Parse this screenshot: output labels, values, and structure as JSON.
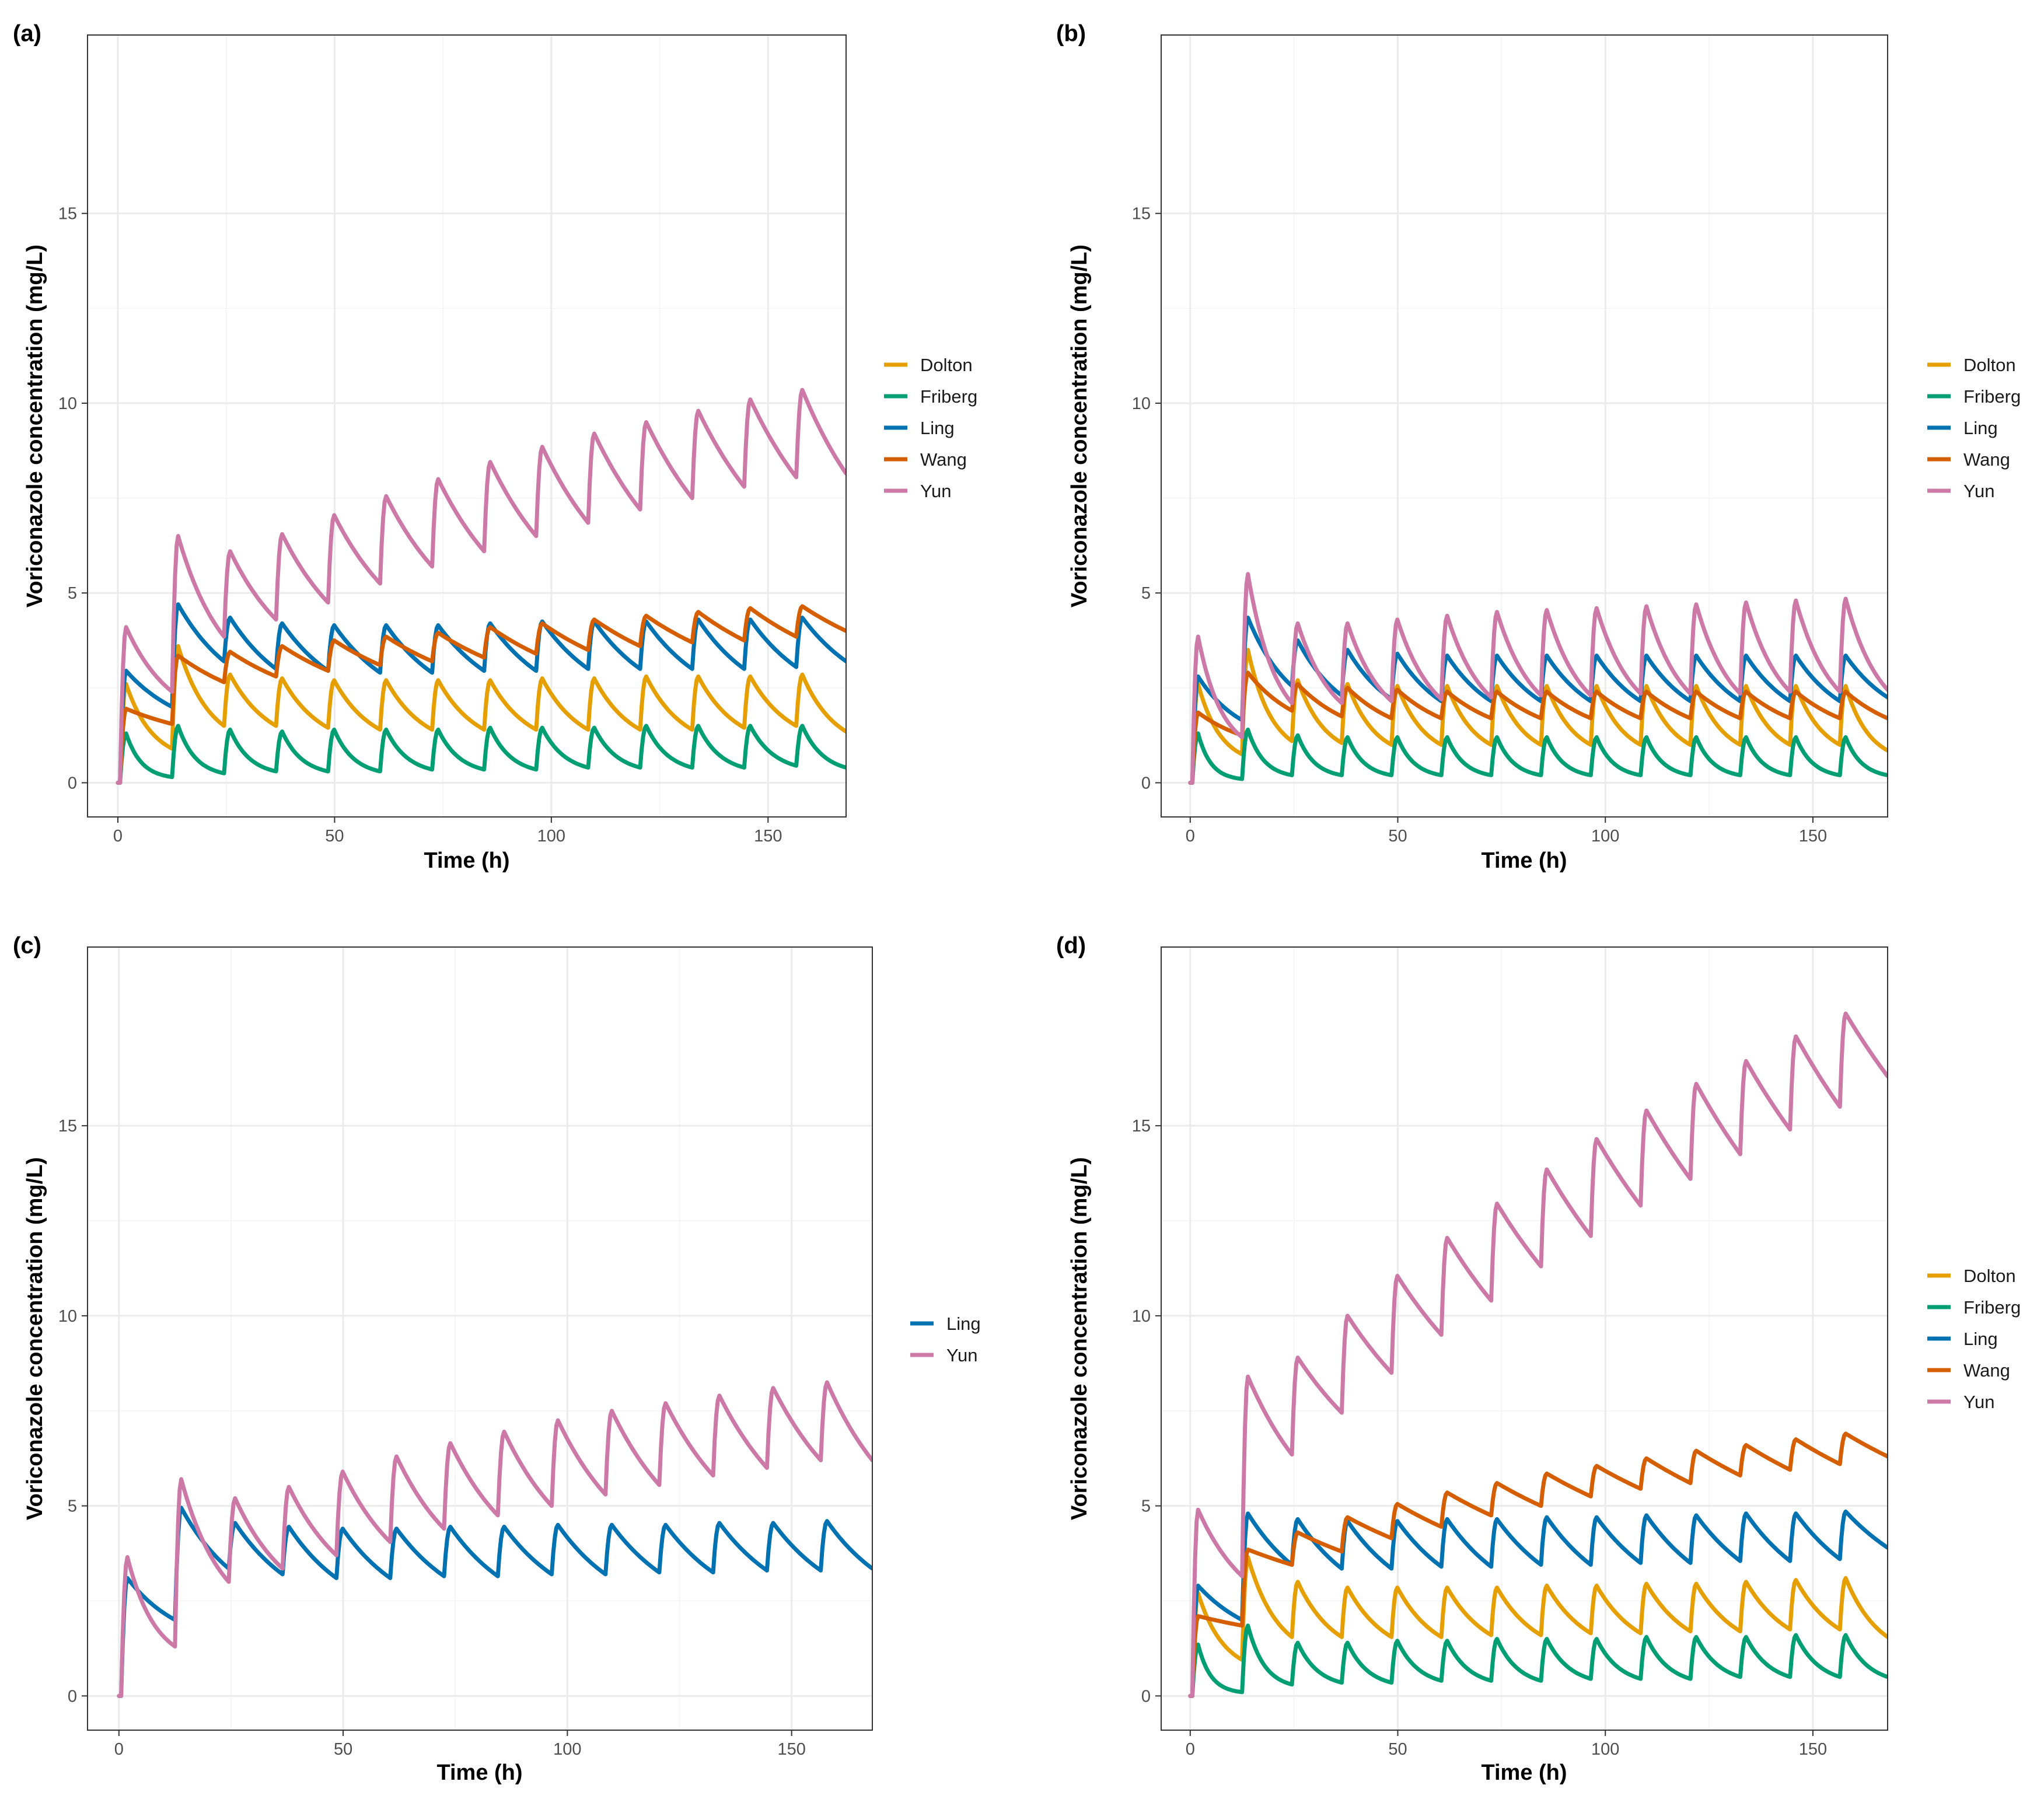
{
  "figure": {
    "x_label": "Time (h)",
    "y_label": "Voriconazole concentration (mg/L)"
  },
  "colors": {
    "Dolton": "#E69F00",
    "Friberg": "#009E73",
    "Ling": "#0072B2",
    "Wang": "#D55E00",
    "Yun": "#CC79A7"
  },
  "chart_data": [
    {
      "panel": "(a)",
      "type": "line",
      "xlabel": "Time (h)",
      "ylabel": "Voriconazole concentration (mg/L)",
      "xlim": [
        -7,
        168
      ],
      "ylim": [
        -0.9,
        19.7
      ],
      "xticks": [
        0,
        50,
        100,
        150
      ],
      "yticks": [
        0,
        5,
        10,
        15
      ],
      "legend": [
        "Dolton",
        "Friberg",
        "Ling",
        "Wang",
        "Yun"
      ],
      "series": [
        {
          "name": "Dolton",
          "peaks": [
            2.6,
            3.6,
            2.85,
            2.75,
            2.7,
            2.7,
            2.7,
            2.7,
            2.75,
            2.75,
            2.8,
            2.8,
            2.8,
            2.85
          ],
          "troughs": [
            0.0,
            0.9,
            1.5,
            1.5,
            1.45,
            1.4,
            1.4,
            1.4,
            1.4,
            1.4,
            1.4,
            1.4,
            1.45,
            1.5
          ],
          "end": 1.35
        },
        {
          "name": "Friberg",
          "peaks": [
            1.3,
            1.5,
            1.4,
            1.35,
            1.4,
            1.4,
            1.4,
            1.45,
            1.45,
            1.45,
            1.5,
            1.5,
            1.5,
            1.5
          ],
          "troughs": [
            0.0,
            0.15,
            0.25,
            0.3,
            0.3,
            0.3,
            0.35,
            0.35,
            0.35,
            0.4,
            0.4,
            0.4,
            0.4,
            0.45
          ],
          "end": 0.4
        },
        {
          "name": "Ling",
          "peaks": [
            2.95,
            4.7,
            4.35,
            4.2,
            4.15,
            4.15,
            4.15,
            4.2,
            4.25,
            4.25,
            4.25,
            4.3,
            4.3,
            4.35
          ],
          "troughs": [
            0.0,
            2.0,
            3.2,
            3.0,
            2.95,
            2.9,
            2.9,
            2.95,
            2.95,
            3.0,
            3.0,
            3.0,
            3.0,
            3.05
          ],
          "end": 3.2
        },
        {
          "name": "Wang",
          "peaks": [
            1.95,
            3.35,
            3.45,
            3.6,
            3.75,
            3.85,
            3.95,
            4.1,
            4.2,
            4.3,
            4.4,
            4.5,
            4.6,
            4.65
          ],
          "troughs": [
            0.0,
            1.55,
            2.65,
            2.8,
            2.95,
            3.1,
            3.2,
            3.3,
            3.4,
            3.5,
            3.6,
            3.7,
            3.75,
            3.85
          ],
          "end": 4.0
        },
        {
          "name": "Yun",
          "peaks": [
            4.1,
            6.5,
            6.1,
            6.55,
            7.05,
            7.55,
            8.0,
            8.45,
            8.85,
            9.2,
            9.5,
            9.8,
            10.1,
            10.35
          ],
          "troughs": [
            0.0,
            2.4,
            3.85,
            4.3,
            4.75,
            5.25,
            5.7,
            6.1,
            6.5,
            6.85,
            7.2,
            7.5,
            7.8,
            8.05
          ],
          "end": 8.15
        }
      ]
    },
    {
      "panel": "(b)",
      "type": "line",
      "xlabel": "Time (h)",
      "ylabel": "Voriconazole concentration (mg/L)",
      "xlim": [
        -7,
        168
      ],
      "ylim": [
        -0.9,
        19.7
      ],
      "xticks": [
        0,
        50,
        100,
        150
      ],
      "yticks": [
        0,
        5,
        10,
        15
      ],
      "legend": [
        "Dolton",
        "Friberg",
        "Ling",
        "Wang",
        "Yun"
      ],
      "series": [
        {
          "name": "Dolton",
          "peaks": [
            2.6,
            3.5,
            2.7,
            2.6,
            2.55,
            2.55,
            2.55,
            2.55,
            2.55,
            2.55,
            2.55,
            2.55,
            2.55,
            2.55
          ],
          "troughs": [
            0.0,
            0.75,
            1.1,
            1.05,
            1.0,
            1.0,
            1.0,
            1.0,
            1.0,
            1.0,
            1.0,
            1.0,
            1.0,
            1.0
          ],
          "end": 0.85
        },
        {
          "name": "Friberg",
          "peaks": [
            1.3,
            1.4,
            1.25,
            1.2,
            1.2,
            1.2,
            1.2,
            1.2,
            1.2,
            1.2,
            1.2,
            1.2,
            1.2,
            1.2
          ],
          "troughs": [
            0.0,
            0.1,
            0.2,
            0.2,
            0.2,
            0.2,
            0.2,
            0.2,
            0.2,
            0.2,
            0.2,
            0.2,
            0.2,
            0.2
          ],
          "end": 0.2
        },
        {
          "name": "Ling",
          "peaks": [
            2.8,
            4.35,
            3.75,
            3.5,
            3.4,
            3.35,
            3.35,
            3.35,
            3.35,
            3.35,
            3.35,
            3.35,
            3.35,
            3.35
          ],
          "troughs": [
            0.0,
            1.65,
            2.55,
            2.3,
            2.2,
            2.15,
            2.15,
            2.15,
            2.15,
            2.15,
            2.15,
            2.15,
            2.15,
            2.15
          ],
          "end": 2.25
        },
        {
          "name": "Wang",
          "peaks": [
            1.85,
            2.9,
            2.6,
            2.5,
            2.45,
            2.4,
            2.4,
            2.4,
            2.4,
            2.4,
            2.4,
            2.4,
            2.4,
            2.4
          ],
          "troughs": [
            0.0,
            1.25,
            1.9,
            1.75,
            1.7,
            1.7,
            1.7,
            1.7,
            1.7,
            1.7,
            1.7,
            1.7,
            1.7,
            1.7
          ],
          "end": 1.7
        },
        {
          "name": "Yun",
          "peaks": [
            3.85,
            5.5,
            4.2,
            4.2,
            4.3,
            4.4,
            4.5,
            4.55,
            4.6,
            4.65,
            4.7,
            4.75,
            4.8,
            4.85
          ],
          "troughs": [
            0.0,
            1.2,
            2.1,
            2.1,
            2.15,
            2.2,
            2.25,
            2.3,
            2.3,
            2.35,
            2.35,
            2.35,
            2.4,
            2.4
          ],
          "end": 2.45
        }
      ]
    },
    {
      "panel": "(c)",
      "type": "line",
      "xlabel": "Time (h)",
      "ylabel": "Voriconazole concentration (mg/L)",
      "xlim": [
        -7,
        168
      ],
      "ylim": [
        -0.9,
        19.7
      ],
      "xticks": [
        0,
        50,
        100,
        150
      ],
      "yticks": [
        0,
        5,
        10,
        15
      ],
      "legend": [
        "Ling",
        "Yun"
      ],
      "series": [
        {
          "name": "Ling",
          "peaks": [
            3.1,
            4.95,
            4.55,
            4.45,
            4.4,
            4.4,
            4.45,
            4.45,
            4.5,
            4.5,
            4.5,
            4.55,
            4.55,
            4.6
          ],
          "troughs": [
            0.0,
            2.0,
            3.35,
            3.2,
            3.1,
            3.1,
            3.15,
            3.15,
            3.2,
            3.2,
            3.25,
            3.25,
            3.3,
            3.3
          ],
          "end": 3.35
        },
        {
          "name": "Yun",
          "peaks": [
            3.65,
            5.7,
            5.2,
            5.5,
            5.9,
            6.3,
            6.65,
            6.95,
            7.25,
            7.5,
            7.7,
            7.9,
            8.1,
            8.25
          ],
          "troughs": [
            0.0,
            1.3,
            3.0,
            3.35,
            3.7,
            4.05,
            4.4,
            4.75,
            5.0,
            5.3,
            5.55,
            5.8,
            6.0,
            6.2
          ],
          "end": 6.2
        }
      ]
    },
    {
      "panel": "(d)",
      "type": "line",
      "xlabel": "Time (h)",
      "ylabel": "Voriconazole concentration (mg/L)",
      "xlim": [
        -7,
        168
      ],
      "ylim": [
        -0.9,
        19.7
      ],
      "xticks": [
        0,
        50,
        100,
        150
      ],
      "yticks": [
        0,
        5,
        10,
        15
      ],
      "legend": [
        "Dolton",
        "Friberg",
        "Ling",
        "Wang",
        "Yun"
      ],
      "series": [
        {
          "name": "Dolton",
          "peaks": [
            2.7,
            3.65,
            3.0,
            2.85,
            2.85,
            2.85,
            2.85,
            2.9,
            2.9,
            2.95,
            2.95,
            3.0,
            3.05,
            3.1
          ],
          "troughs": [
            0.0,
            0.95,
            1.55,
            1.55,
            1.55,
            1.55,
            1.6,
            1.6,
            1.65,
            1.65,
            1.7,
            1.7,
            1.75,
            1.75
          ],
          "end": 1.55
        },
        {
          "name": "Friberg",
          "peaks": [
            1.35,
            1.85,
            1.4,
            1.4,
            1.45,
            1.45,
            1.5,
            1.5,
            1.5,
            1.55,
            1.55,
            1.55,
            1.6,
            1.6
          ],
          "troughs": [
            0.0,
            0.1,
            0.3,
            0.35,
            0.35,
            0.4,
            0.4,
            0.4,
            0.45,
            0.45,
            0.45,
            0.5,
            0.5,
            0.5
          ],
          "end": 0.5
        },
        {
          "name": "Ling",
          "peaks": [
            2.9,
            4.8,
            4.65,
            4.6,
            4.6,
            4.65,
            4.65,
            4.7,
            4.7,
            4.75,
            4.75,
            4.8,
            4.8,
            4.85
          ],
          "troughs": [
            0.0,
            2.0,
            3.45,
            3.35,
            3.35,
            3.4,
            3.4,
            3.45,
            3.45,
            3.5,
            3.5,
            3.55,
            3.55,
            3.6
          ],
          "end": 3.9
        },
        {
          "name": "Wang",
          "peaks": [
            2.1,
            3.85,
            4.3,
            4.7,
            5.05,
            5.35,
            5.6,
            5.85,
            6.05,
            6.25,
            6.45,
            6.6,
            6.75,
            6.9
          ],
          "troughs": [
            0.0,
            1.85,
            3.45,
            3.8,
            4.15,
            4.45,
            4.75,
            5.0,
            5.25,
            5.45,
            5.6,
            5.8,
            5.95,
            6.1
          ],
          "end": 6.3
        },
        {
          "name": "Yun",
          "peaks": [
            4.9,
            8.4,
            8.9,
            10.0,
            11.05,
            12.05,
            12.95,
            13.85,
            14.65,
            15.4,
            16.1,
            16.7,
            17.35,
            17.95
          ],
          "troughs": [
            0.0,
            3.15,
            6.35,
            7.45,
            8.5,
            9.5,
            10.4,
            11.3,
            12.1,
            12.9,
            13.6,
            14.25,
            14.9,
            15.5
          ],
          "end": 16.3
        }
      ]
    }
  ]
}
